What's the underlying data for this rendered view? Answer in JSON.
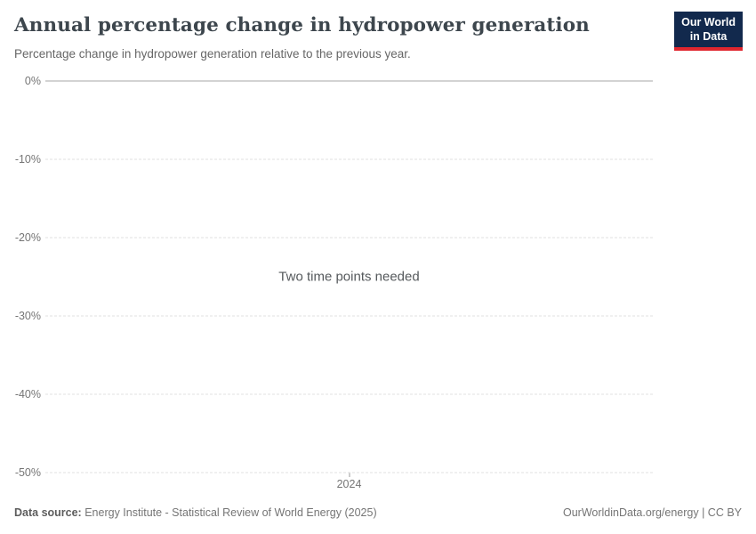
{
  "header": {
    "title": "Annual percentage change in hydropower generation",
    "subtitle": "Percentage change in hydropower generation relative to the previous year.",
    "logo": {
      "line1": "Our World",
      "line2": "in Data"
    }
  },
  "chart_data": {
    "type": "line",
    "title": "Annual percentage change in hydropower generation",
    "subtitle": "Percentage change in hydropower generation relative to the previous year.",
    "series": [],
    "empty_state_message": "Two time points needed",
    "xticks": [
      "2024"
    ],
    "yticks": [
      "0%",
      "-10%",
      "-20%",
      "-30%",
      "-40%",
      "-50%"
    ],
    "ytick_values": [
      0,
      -10,
      -20,
      -30,
      -40,
      -50
    ],
    "ylim": [
      -50,
      0
    ],
    "grid": true,
    "legend": "none"
  },
  "footer": {
    "source_label": "Data source:",
    "source_text": "Energy Institute - Statistical Review of World Energy (2025)",
    "attribution": "OurWorldinData.org/energy | CC BY"
  },
  "colors": {
    "logo_background": "#12294d",
    "logo_accent": "#e0262e",
    "title_text": "#3d464d",
    "muted_text": "#757575",
    "grid_dashed": "#e2e2e2",
    "grid_zero_line": "#a7a7a7"
  }
}
